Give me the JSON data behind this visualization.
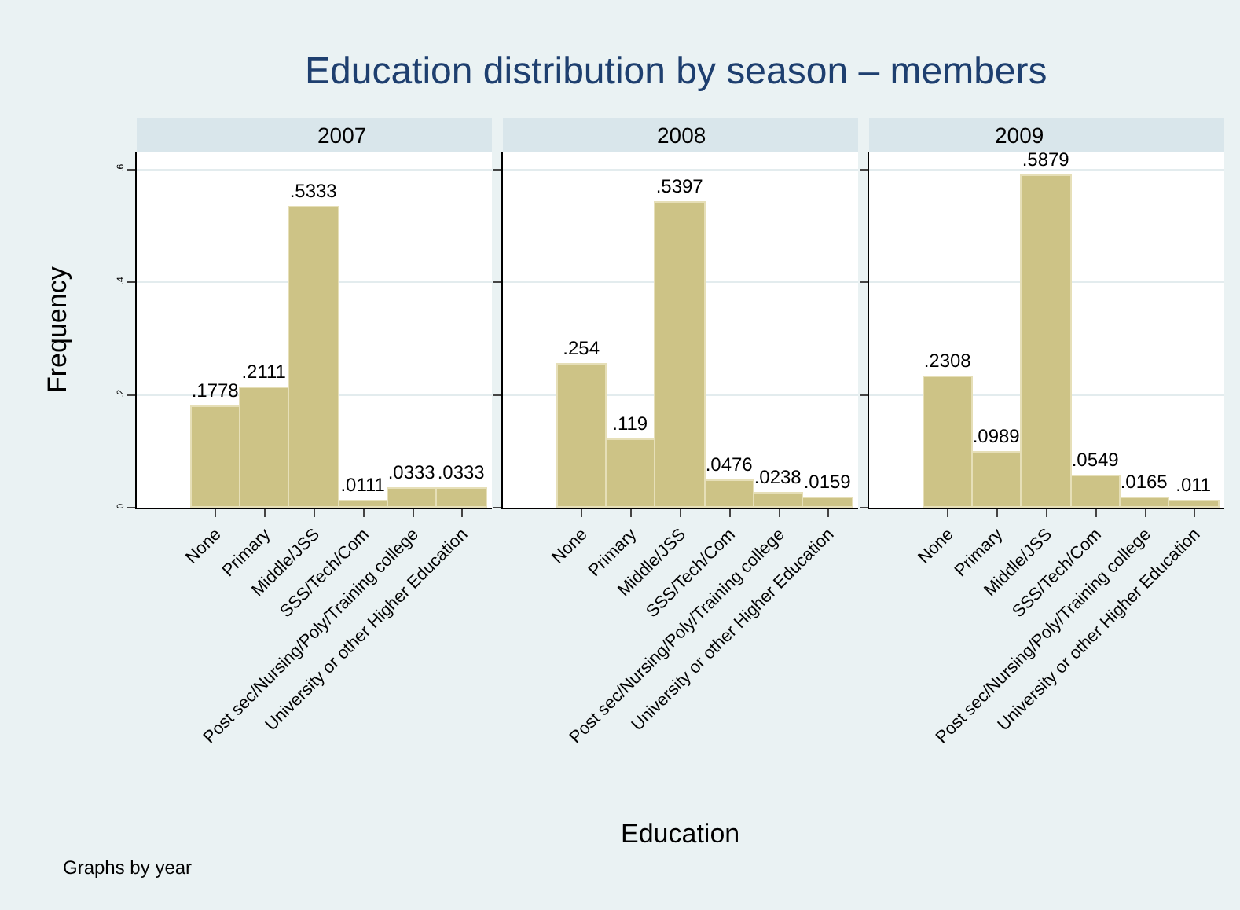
{
  "chart_data": [
    {
      "type": "bar",
      "title": "Education distribution by season – members",
      "subtitle": "2007",
      "ylabel": "Frequency",
      "annotations": [
        "Graphs by year"
      ],
      "categories": [
        "None",
        "Primary",
        "Middle/JSS",
        "SSS/Tech/Com",
        "Post sec/Nursing/Poly/Training college",
        "University or other Higher Education"
      ],
      "values": [
        0.1778,
        0.2111,
        0.5333,
        0.0111,
        0.0333,
        0.0333
      ],
      "value_labels": [
        ".1778",
        ".2111",
        ".5333",
        ".0111",
        ".0333",
        ".0333"
      ],
      "color": "#cdc386",
      "ylim": [
        0,
        0.63
      ],
      "yticks": [
        0,
        {
          "value": 0.2,
          "label": ".2"
        },
        {
          "value": 0.4,
          "label": ".4"
        },
        {
          "value": 0.6,
          "label": ".6"
        }
      ],
      "grid": "y"
    },
    {
      "type": "bar",
      "subtitle": "2008",
      "xlabel": "Education",
      "categories": [
        "None",
        "Primary",
        "Middle/JSS",
        "SSS/Tech/Com",
        "Post sec/Nursing/Poly/Training college",
        "University or other Higher Education"
      ],
      "values": [
        0.254,
        0.119,
        0.5397,
        0.0476,
        0.0238,
        0.0159
      ],
      "value_labels": [
        ".254",
        ".119",
        ".5397",
        ".0476",
        ".0238",
        ".0159"
      ],
      "color": "#cdc386",
      "ylim": [
        0,
        0.63
      ],
      "yticks": [
        {
          "value": 0,
          "label": null
        },
        {
          "value": 0.2,
          "label": null
        },
        {
          "value": 0.4,
          "label": null
        },
        {
          "value": 0.6,
          "label": null
        }
      ],
      "grid": "y",
      "tick_labels": "x"
    },
    {
      "type": "bar",
      "subtitle": "2009",
      "categories": [
        "None",
        "Primary",
        "Middle/JSS",
        "SSS/Tech/Com",
        "Post sec/Nursing/Poly/Training college",
        "University or other Higher Education"
      ],
      "values": [
        0.2308,
        0.0989,
        0.5879,
        0.0549,
        0.0165,
        0.011
      ],
      "value_labels": [
        ".2308",
        ".0989",
        ".5879",
        ".0549",
        ".0165",
        ".011"
      ],
      "color": "#cdc386",
      "ylim": [
        0,
        0.63
      ],
      "yticks": [
        {
          "value": 0,
          "label": null
        },
        {
          "value": 0.2,
          "label": null
        },
        {
          "value": 0.4,
          "label": null
        },
        {
          "value": 0.6,
          "label": null
        }
      ],
      "grid": "y",
      "tick_labels": "x"
    }
  ]
}
